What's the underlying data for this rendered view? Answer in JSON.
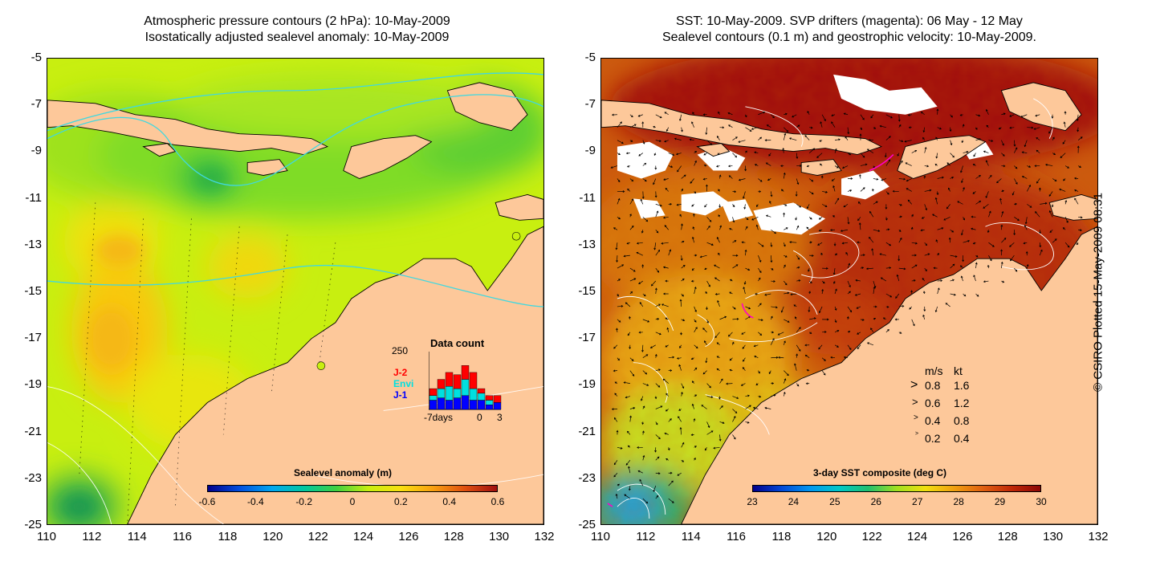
{
  "left_panel": {
    "title_line1": "Atmospheric pressure contours (2 hPa): 10-May-2009",
    "title_line2": "Isostatically adjusted sealevel anomaly: 10-May-2009",
    "colorbar": {
      "title": "Sealevel anomaly (m)",
      "ticks": [
        "-0.6",
        "-0.4",
        "-0.2",
        "0",
        "0.2",
        "0.4",
        "0.6"
      ]
    },
    "data_count": {
      "title": "Data count",
      "max_label": "250",
      "x_labels": [
        "-7days",
        "0",
        "3"
      ],
      "series": [
        {
          "name": "J-2",
          "color": "#ff0000"
        },
        {
          "name": "Envi",
          "color": "#00e0e0"
        },
        {
          "name": "J-1",
          "color": "#0000ff"
        }
      ],
      "bars": [
        {
          "day": -7,
          "J1": 40,
          "Envi": 20,
          "J2": 30
        },
        {
          "day": -6,
          "J1": 50,
          "Envi": 40,
          "J2": 40
        },
        {
          "day": -5,
          "J1": 40,
          "Envi": 60,
          "J2": 60
        },
        {
          "day": -4,
          "J1": 50,
          "Envi": 40,
          "J2": 60
        },
        {
          "day": -3,
          "J1": 60,
          "Envi": 70,
          "J2": 60
        },
        {
          "day": -2,
          "J1": 40,
          "Envi": 50,
          "J2": 70
        },
        {
          "day": -1,
          "J1": 40,
          "Envi": 30,
          "J2": 20
        },
        {
          "day": 0,
          "J1": 20,
          "Envi": 20,
          "J2": 20
        },
        {
          "day": 1,
          "J1": 30,
          "Envi": 0,
          "J2": 30
        }
      ],
      "y_max": 250
    }
  },
  "right_panel": {
    "title_line1": "SST: 10-May-2009. SVP drifters (magenta): 06 May - 12 May",
    "title_line2": "Sealevel contours (0.1 m) and geostrophic velocity: 10-May-2009.",
    "colorbar": {
      "title": "3-day SST composite (deg C)",
      "ticks": [
        "23",
        "24",
        "25",
        "26",
        "27",
        "28",
        "29",
        "30"
      ]
    },
    "velocity_legend": {
      "header_ms": "m/s",
      "header_kt": "kt",
      "rows": [
        {
          "ms": "0.8",
          "kt": "1.6"
        },
        {
          "ms": "0.6",
          "kt": "1.2"
        },
        {
          "ms": "0.4",
          "kt": "0.8"
        },
        {
          "ms": "0.2",
          "kt": "0.4"
        }
      ]
    }
  },
  "axes": {
    "y_ticks": [
      "-5",
      "-7",
      "-9",
      "-11",
      "-13",
      "-15",
      "-17",
      "-19",
      "-21",
      "-23",
      "-25"
    ],
    "x_ticks": [
      "110",
      "112",
      "114",
      "116",
      "118",
      "120",
      "122",
      "124",
      "126",
      "128",
      "130",
      "132"
    ]
  },
  "stamp": "© CSIRO Plotted 15-May-2009 08:31",
  "colors": {
    "land": "#fdc89a",
    "anomaly_base": "#c8ef10",
    "sst_hot": "#a01008",
    "sst_mid": "#d06010"
  }
}
